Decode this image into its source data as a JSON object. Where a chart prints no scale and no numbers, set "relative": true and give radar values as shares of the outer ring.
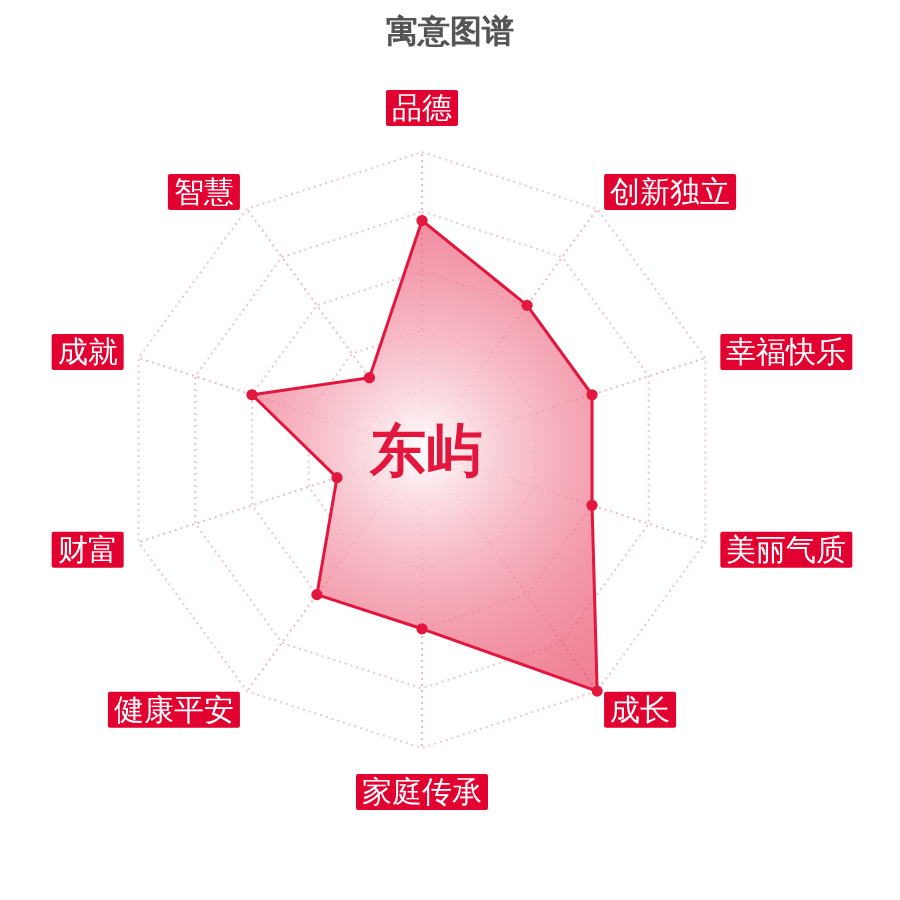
{
  "chart_data": {
    "type": "radar",
    "title": "寓意图谱",
    "relative": true,
    "grid": true,
    "marker": "circle",
    "categories": [
      "品德",
      "创新独立",
      "幸福快乐",
      "美丽气质",
      "成长",
      "家庭传承",
      "健康平安",
      "财富",
      "成就",
      "智慧"
    ],
    "series": [
      {
        "color": "#e3163d",
        "values": [
          0.77,
          0.6,
          0.6,
          0.6,
          1.0,
          0.6,
          0.6,
          0.3,
          0.6,
          0.3
        ]
      }
    ],
    "annotations": [
      "东屿"
    ]
  }
}
